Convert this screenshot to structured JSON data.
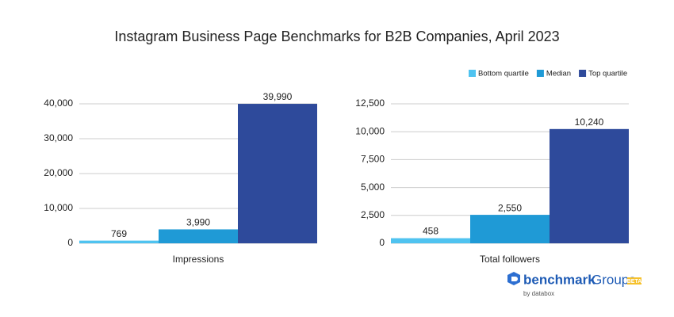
{
  "title": "Instagram Business Page Benchmarks for B2B Companies, April 2023",
  "chart_data": [
    {
      "type": "bar",
      "categories": [
        "Impressions"
      ],
      "series": [
        {
          "name": "Bottom quartile",
          "color": "#4fc3f0",
          "values": [
            769
          ],
          "value_labels": [
            "769"
          ]
        },
        {
          "name": "Median",
          "color": "#1f9ad6",
          "values": [
            3990
          ],
          "value_labels": [
            "3,990"
          ]
        },
        {
          "name": "Top quartile",
          "color": "#2e4a9b",
          "values": [
            39990
          ],
          "value_labels": [
            "39,990"
          ]
        }
      ],
      "ylim": [
        0,
        40000
      ],
      "yticks": [
        0,
        {
          "value": 10000,
          "label": "10,000"
        },
        {
          "value": 20000,
          "label": "20,000"
        },
        {
          "value": 30000,
          "label": "30,000"
        },
        {
          "value": 40000,
          "label": "40,000"
        }
      ],
      "grid": true
    },
    {
      "type": "bar",
      "categories": [
        "Total followers"
      ],
      "series": [
        {
          "color": "#4fc3f0",
          "values": [
            458
          ],
          "value_labels": [
            "458"
          ]
        },
        {
          "color": "#1f9ad6",
          "values": [
            2550
          ],
          "value_labels": [
            "2,550"
          ]
        },
        {
          "color": "#2e4a9b",
          "values": [
            10240
          ],
          "value_labels": [
            "10,240"
          ]
        }
      ],
      "ylim": [
        0,
        12500
      ],
      "yticks": [
        0,
        {
          "value": 2500,
          "label": "2,500"
        },
        {
          "value": 5000,
          "label": "5,000"
        },
        {
          "value": 7500,
          "label": "7,500"
        },
        {
          "value": 10000,
          "label": "10,000"
        },
        {
          "value": 12500,
          "label": "12,500"
        }
      ],
      "grid": true
    }
  ],
  "branding": {
    "name": "benchmark",
    "product": "Groups",
    "badge": "BETA",
    "byline": "by databox"
  }
}
